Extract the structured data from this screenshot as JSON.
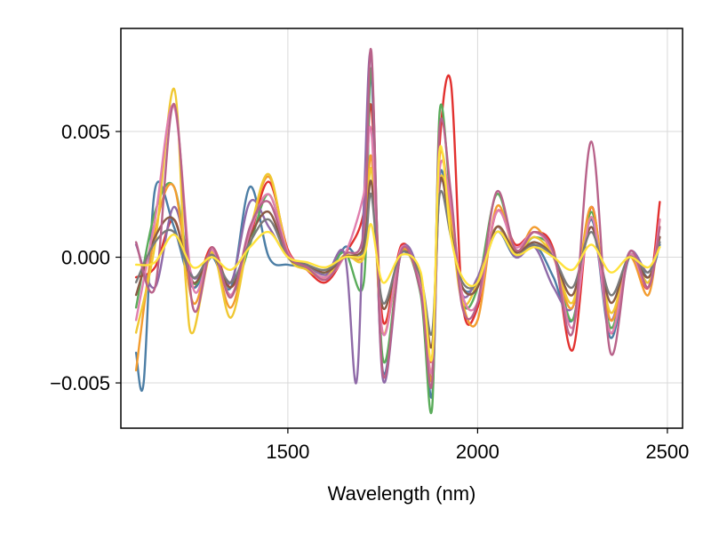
{
  "chart_data": {
    "type": "line",
    "title": "",
    "xlabel": "Wavelength (nm)",
    "ylabel": "",
    "xlim": [
      1060,
      2540
    ],
    "ylim": [
      -0.0068,
      0.0091
    ],
    "xticks": [
      1500,
      2000,
      2500
    ],
    "xtick_labels": [
      "1500",
      "2000",
      "2500"
    ],
    "yticks": [
      -0.005,
      0.0,
      0.005
    ],
    "ytick_labels": [
      "−0.005",
      "0.000",
      "0.005"
    ],
    "grid": true,
    "legend": "none",
    "series": [
      {
        "color": "#e2312f",
        "x": [
          1100,
          1150,
          1200,
          1250,
          1300,
          1350,
          1400,
          1450,
          1500,
          1550,
          1600,
          1650,
          1700,
          1720,
          1750,
          1800,
          1850,
          1880,
          1900,
          1930,
          1960,
          2000,
          2050,
          2100,
          2150,
          2200,
          2250,
          2300,
          2350,
          2400,
          2450,
          2480
        ],
        "y": [
          -0.0008,
          -0.0004,
          0.0015,
          -0.0012,
          0.0004,
          -0.0012,
          0.0008,
          0.003,
          0.0003,
          -0.0005,
          -0.001,
          0.0001,
          0.0018,
          0.006,
          -0.0025,
          0.0005,
          -0.001,
          -0.004,
          0.0045,
          0.0069,
          -0.0018,
          -0.002,
          0.0018,
          0.0005,
          0.001,
          0.0003,
          -0.0037,
          0.002,
          -0.003,
          0.0,
          -0.0012,
          0.0022
        ]
      },
      {
        "color": "#4c7ea5",
        "x": [
          1100,
          1120,
          1150,
          1200,
          1250,
          1300,
          1350,
          1400,
          1450,
          1500,
          1550,
          1600,
          1650,
          1700,
          1720,
          1750,
          1800,
          1850,
          1880,
          1900,
          1930,
          1960,
          2000,
          2050,
          2100,
          2150,
          2200,
          2250,
          2300,
          2350,
          2400,
          2450,
          2480
        ],
        "y": [
          -0.0038,
          -0.005,
          0.0027,
          0.0012,
          -0.0012,
          0.0,
          -0.0012,
          0.0028,
          0.0,
          -0.0003,
          -0.0004,
          -0.0008,
          0.0004,
          0.0005,
          0.0072,
          -0.0045,
          0.0003,
          -0.0012,
          -0.0055,
          0.0032,
          0.001,
          -0.0012,
          -0.001,
          0.001,
          0.0,
          0.0005,
          -0.0008,
          -0.0025,
          0.0015,
          -0.0032,
          0.0,
          -0.0008,
          0.0005
        ]
      },
      {
        "color": "#5aac5a",
        "x": [
          1100,
          1150,
          1200,
          1250,
          1300,
          1350,
          1400,
          1450,
          1500,
          1550,
          1600,
          1650,
          1700,
          1720,
          1750,
          1800,
          1850,
          1880,
          1900,
          1930,
          1960,
          2000,
          2050,
          2100,
          2150,
          2200,
          2250,
          2300,
          2350,
          2400,
          2450,
          2480
        ],
        "y": [
          -0.002,
          0.0018,
          0.0028,
          -0.001,
          0.0002,
          -0.0015,
          0.0005,
          0.0025,
          0.0001,
          -0.0004,
          -0.0006,
          0.0002,
          -0.001,
          0.0075,
          -0.004,
          0.0002,
          -0.0015,
          -0.006,
          0.0058,
          0.002,
          -0.0018,
          -0.0012,
          0.0025,
          0.0003,
          0.0008,
          0.0002,
          -0.0025,
          0.0018,
          -0.0028,
          0.0001,
          -0.001,
          0.0012
        ]
      },
      {
        "color": "#8f6aa8",
        "x": [
          1100,
          1150,
          1200,
          1250,
          1300,
          1350,
          1400,
          1450,
          1500,
          1550,
          1600,
          1650,
          1680,
          1700,
          1720,
          1750,
          1800,
          1850,
          1880,
          1900,
          1930,
          1960,
          2000,
          2050,
          2100,
          2150,
          2200,
          2250,
          2300,
          2350,
          2400,
          2450,
          2480
        ],
        "y": [
          0.0005,
          -0.0012,
          0.002,
          -0.0008,
          0.0001,
          -0.001,
          0.0022,
          0.0012,
          0.0,
          -0.0003,
          -0.0007,
          0.0001,
          -0.005,
          0.002,
          0.008,
          -0.0048,
          0.0003,
          -0.001,
          -0.0048,
          0.0028,
          0.0012,
          -0.0015,
          -0.0008,
          0.0012,
          0.0,
          0.0004,
          -0.0012,
          -0.002,
          0.0012,
          -0.0025,
          0.0002,
          -0.0006,
          0.0008
        ]
      },
      {
        "color": "#f39c2f",
        "x": [
          1100,
          1150,
          1200,
          1250,
          1300,
          1350,
          1400,
          1450,
          1500,
          1550,
          1600,
          1650,
          1700,
          1720,
          1750,
          1800,
          1850,
          1880,
          1900,
          1930,
          1960,
          2000,
          2050,
          2100,
          2150,
          2200,
          2250,
          2300,
          2350,
          2400,
          2450,
          2480
        ],
        "y": [
          -0.0045,
          0.001,
          0.0028,
          -0.0018,
          0.0002,
          -0.002,
          0.001,
          0.0032,
          0.0002,
          -0.0004,
          -0.0008,
          0.0,
          0.0002,
          0.004,
          -0.003,
          0.0003,
          -0.0012,
          -0.0048,
          0.004,
          0.0015,
          -0.0018,
          -0.0025,
          0.002,
          0.0002,
          0.0012,
          0.0,
          -0.002,
          0.002,
          -0.0025,
          0.0,
          -0.0015,
          0.0015
        ]
      },
      {
        "color": "#f0c832",
        "x": [
          1100,
          1150,
          1200,
          1230,
          1250,
          1300,
          1350,
          1400,
          1450,
          1500,
          1550,
          1600,
          1650,
          1700,
          1720,
          1750,
          1800,
          1850,
          1880,
          1900,
          1930,
          1960,
          2000,
          2050,
          2100,
          2150,
          2200,
          2250,
          2300,
          2350,
          2400,
          2450,
          2480
        ],
        "y": [
          -0.003,
          0.0005,
          0.0067,
          -0.0008,
          -0.003,
          0.0002,
          -0.0024,
          0.001,
          0.0033,
          0.0001,
          -0.0005,
          -0.0008,
          0.0001,
          0.0,
          0.0035,
          -0.003,
          0.0002,
          -0.0012,
          -0.0045,
          0.003,
          0.0012,
          -0.0018,
          -0.001,
          0.0012,
          0.0002,
          0.0008,
          0.0,
          -0.0018,
          0.0016,
          -0.0022,
          0.0001,
          -0.001,
          0.0012
        ]
      },
      {
        "color": "#8a5a44",
        "x": [
          1100,
          1150,
          1200,
          1250,
          1300,
          1350,
          1400,
          1450,
          1500,
          1550,
          1600,
          1650,
          1700,
          1720,
          1750,
          1800,
          1850,
          1880,
          1900,
          1930,
          1960,
          2000,
          2050,
          2100,
          2150,
          2200,
          2250,
          2300,
          2350,
          2400,
          2450,
          2480
        ],
        "y": [
          -0.0015,
          0.0008,
          0.0015,
          -0.001,
          0.0001,
          -0.0012,
          0.0008,
          0.0018,
          0.0,
          -0.0003,
          -0.0006,
          0.0,
          0.0004,
          0.003,
          -0.002,
          0.0002,
          -0.0008,
          -0.0035,
          0.003,
          0.001,
          -0.0012,
          -0.0012,
          0.0012,
          0.0002,
          0.0006,
          0.0,
          -0.0015,
          0.0012,
          -0.0018,
          0.0,
          -0.0008,
          0.0008
        ]
      },
      {
        "color": "#e07fae",
        "x": [
          1100,
          1150,
          1200,
          1250,
          1300,
          1350,
          1400,
          1450,
          1500,
          1550,
          1600,
          1650,
          1700,
          1720,
          1750,
          1800,
          1850,
          1880,
          1900,
          1930,
          1960,
          2000,
          2050,
          2100,
          2150,
          2200,
          2250,
          2300,
          2350,
          2400,
          2450,
          2480
        ],
        "y": [
          -0.0025,
          0.0015,
          0.006,
          -0.0012,
          0.0003,
          -0.0015,
          0.001,
          0.0025,
          0.0002,
          -0.0004,
          -0.0008,
          0.0001,
          0.0025,
          0.005,
          -0.003,
          0.0004,
          -0.0012,
          -0.0045,
          0.0035,
          0.002,
          -0.0015,
          -0.0018,
          0.0018,
          0.0004,
          0.001,
          0.0001,
          -0.0028,
          0.0016,
          -0.003,
          0.0001,
          -0.0012,
          0.0015
        ]
      },
      {
        "color": "#7a7a7a",
        "x": [
          1100,
          1150,
          1200,
          1250,
          1300,
          1350,
          1400,
          1450,
          1500,
          1550,
          1600,
          1650,
          1700,
          1720,
          1750,
          1800,
          1850,
          1880,
          1900,
          1930,
          1960,
          2000,
          2050,
          2100,
          2150,
          2200,
          2250,
          2300,
          2350,
          2400,
          2450,
          2480
        ],
        "y": [
          -0.001,
          0.0006,
          0.001,
          -0.0008,
          0.0001,
          -0.001,
          0.0006,
          0.0015,
          0.0,
          -0.0003,
          -0.0005,
          0.0,
          0.0002,
          0.0025,
          -0.0018,
          0.0002,
          -0.0008,
          -0.003,
          0.0025,
          0.0008,
          -0.001,
          -0.001,
          0.001,
          0.0001,
          0.0005,
          0.0,
          -0.0012,
          0.001,
          -0.0015,
          0.0,
          -0.0006,
          0.0006
        ]
      },
      {
        "color": "#b8628a",
        "x": [
          1100,
          1150,
          1200,
          1250,
          1300,
          1350,
          1400,
          1450,
          1500,
          1550,
          1600,
          1650,
          1700,
          1720,
          1750,
          1800,
          1850,
          1880,
          1900,
          1930,
          1960,
          2000,
          2050,
          2100,
          2150,
          2200,
          2250,
          2300,
          2350,
          2400,
          2450,
          2480
        ],
        "y": [
          0.0006,
          -0.0012,
          0.0061,
          -0.002,
          0.0004,
          -0.0016,
          0.0012,
          0.0022,
          0.0001,
          -0.0004,
          -0.0009,
          0.0001,
          0.001,
          0.0082,
          -0.0046,
          0.0003,
          -0.0014,
          -0.005,
          0.0052,
          0.0025,
          -0.002,
          -0.0018,
          0.0026,
          0.0003,
          0.001,
          0.0002,
          -0.003,
          0.0046,
          -0.0038,
          0.0002,
          -0.0012,
          0.0012
        ]
      },
      {
        "color": "#ffe23b",
        "x": [
          1100,
          1150,
          1200,
          1250,
          1300,
          1350,
          1400,
          1450,
          1500,
          1550,
          1600,
          1650,
          1700,
          1720,
          1750,
          1800,
          1850,
          1880,
          1900,
          1930,
          1960,
          2000,
          2050,
          2100,
          2150,
          2200,
          2250,
          2300,
          2350,
          2400,
          2450,
          2480
        ],
        "y": [
          -0.0003,
          -0.0002,
          0.0009,
          -0.0004,
          0.0,
          -0.0005,
          0.0004,
          0.001,
          0.0,
          -0.0002,
          -0.0004,
          0.0,
          0.0001,
          0.0013,
          -0.001,
          0.0001,
          -0.0006,
          -0.004,
          0.0043,
          0.0008,
          -0.0008,
          -0.001,
          0.001,
          0.0001,
          0.0004,
          0.0,
          -0.0005,
          0.0005,
          -0.0006,
          0.0,
          -0.0004,
          0.0004
        ]
      }
    ]
  }
}
